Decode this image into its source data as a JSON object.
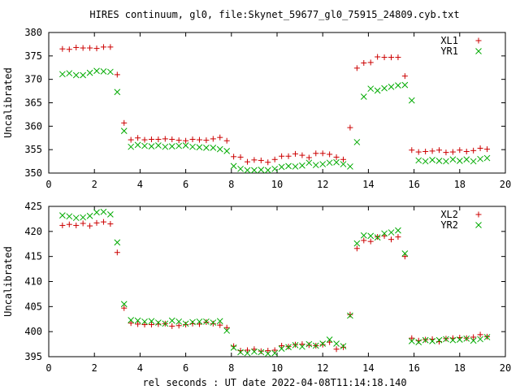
{
  "title": "HIRES continuum, gl0, file:Skynet_59677_gl0_75915_24809.cyb.txt",
  "xlabel": "rel seconds : UT date 2022-04-08T11:14:18.140",
  "colors": {
    "plus_series": "#cc0000",
    "x_series": "#00aa00"
  },
  "chart_data": [
    {
      "type": "scatter",
      "ylabel": "Uncalibrated",
      "xlim": [
        0,
        20
      ],
      "ylim": [
        350,
        380
      ],
      "xticks": [
        0,
        2,
        4,
        6,
        8,
        10,
        12,
        14,
        16,
        18,
        20
      ],
      "yticks": [
        350,
        355,
        360,
        365,
        370,
        375,
        380
      ],
      "legend_position": "top-right",
      "series": [
        {
          "name": "XL1",
          "marker": "plus",
          "x": [
            0.6,
            0.9,
            1.2,
            1.5,
            1.8,
            2.1,
            2.4,
            2.7,
            3.0,
            3.3,
            3.6,
            3.9,
            4.2,
            4.5,
            4.8,
            5.1,
            5.4,
            5.7,
            6.0,
            6.3,
            6.6,
            6.9,
            7.2,
            7.5,
            7.8,
            8.1,
            8.4,
            8.7,
            9.0,
            9.3,
            9.6,
            9.9,
            10.2,
            10.5,
            10.8,
            11.1,
            11.4,
            11.7,
            12.0,
            12.3,
            12.6,
            12.9,
            13.2,
            13.5,
            13.8,
            14.1,
            14.4,
            14.7,
            15.0,
            15.3,
            15.6,
            15.9,
            16.2,
            16.5,
            16.8,
            17.1,
            17.4,
            17.7,
            18.0,
            18.3,
            18.6,
            18.9,
            19.2
          ],
          "y": [
            376.5,
            376.4,
            376.8,
            376.7,
            376.7,
            376.6,
            376.9,
            376.9,
            371.0,
            360.7,
            357.1,
            357.5,
            357.1,
            357.2,
            357.2,
            357.3,
            357.2,
            357.0,
            356.9,
            357.2,
            357.1,
            357.0,
            357.3,
            357.6,
            356.9,
            353.5,
            353.4,
            352.4,
            352.8,
            352.7,
            352.3,
            352.9,
            353.6,
            353.6,
            354.1,
            353.8,
            353.3,
            354.2,
            354.2,
            354.0,
            353.4,
            352.9,
            359.7,
            372.4,
            373.5,
            373.6,
            374.8,
            374.7,
            374.7,
            374.7,
            370.7,
            354.9,
            354.5,
            354.6,
            354.7,
            354.9,
            354.4,
            354.5,
            354.9,
            354.6,
            354.8,
            355.3,
            355.1
          ]
        },
        {
          "name": "YR1",
          "marker": "x",
          "x": [
            0.6,
            0.9,
            1.2,
            1.5,
            1.8,
            2.1,
            2.4,
            2.7,
            3.0,
            3.3,
            3.6,
            3.9,
            4.2,
            4.5,
            4.8,
            5.1,
            5.4,
            5.7,
            6.0,
            6.3,
            6.6,
            6.9,
            7.2,
            7.5,
            7.8,
            8.1,
            8.4,
            8.7,
            9.0,
            9.3,
            9.6,
            9.9,
            10.2,
            10.5,
            10.8,
            11.1,
            11.4,
            11.7,
            12.0,
            12.3,
            12.6,
            12.9,
            13.2,
            13.5,
            13.8,
            14.1,
            14.4,
            14.7,
            15.0,
            15.3,
            15.6,
            15.9,
            16.2,
            16.5,
            16.8,
            17.1,
            17.4,
            17.7,
            18.0,
            18.3,
            18.6,
            18.9,
            19.2
          ],
          "y": [
            371.1,
            371.3,
            370.9,
            370.9,
            371.4,
            371.8,
            371.7,
            371.6,
            367.3,
            359.0,
            355.6,
            356.0,
            355.8,
            355.7,
            355.9,
            355.6,
            355.7,
            355.8,
            355.9,
            355.6,
            355.5,
            355.4,
            355.4,
            355.1,
            354.7,
            351.5,
            350.9,
            350.6,
            350.6,
            350.7,
            350.6,
            350.9,
            351.3,
            351.5,
            351.4,
            351.6,
            352.2,
            351.7,
            351.9,
            352.2,
            352.3,
            351.9,
            351.4,
            356.6,
            366.3,
            368.0,
            367.6,
            368.1,
            368.4,
            368.7,
            368.8,
            365.5,
            352.7,
            352.5,
            352.8,
            352.6,
            352.5,
            352.9,
            352.6,
            352.9,
            352.5,
            353.0,
            353.2
          ]
        }
      ]
    },
    {
      "type": "scatter",
      "ylabel": "Uncalibrated",
      "xlim": [
        0,
        20
      ],
      "ylim": [
        395,
        425
      ],
      "xticks": [
        0,
        2,
        4,
        6,
        8,
        10,
        12,
        14,
        16,
        18,
        20
      ],
      "yticks": [
        395,
        400,
        405,
        410,
        415,
        420,
        425
      ],
      "legend_position": "top-right",
      "series": [
        {
          "name": "XL2",
          "marker": "plus",
          "x": [
            0.6,
            0.9,
            1.2,
            1.5,
            1.8,
            2.1,
            2.4,
            2.7,
            3.0,
            3.3,
            3.6,
            3.9,
            4.2,
            4.5,
            4.8,
            5.1,
            5.4,
            5.7,
            6.0,
            6.3,
            6.6,
            6.9,
            7.2,
            7.5,
            7.8,
            8.1,
            8.4,
            8.7,
            9.0,
            9.3,
            9.6,
            9.9,
            10.2,
            10.5,
            10.8,
            11.1,
            11.4,
            11.7,
            12.0,
            12.3,
            12.6,
            12.9,
            13.2,
            13.5,
            13.8,
            14.1,
            14.4,
            14.7,
            15.0,
            15.3,
            15.6,
            15.9,
            16.2,
            16.5,
            16.8,
            17.1,
            17.4,
            17.7,
            18.0,
            18.3,
            18.6,
            18.9,
            19.2
          ],
          "y": [
            421.2,
            421.4,
            421.2,
            421.6,
            421.1,
            421.7,
            421.9,
            421.5,
            415.8,
            404.7,
            401.7,
            401.5,
            401.4,
            401.4,
            401.5,
            401.6,
            401.1,
            401.2,
            401.4,
            401.6,
            401.5,
            401.9,
            401.6,
            401.3,
            400.8,
            397.1,
            396.2,
            396.3,
            396.5,
            396.1,
            396.2,
            396.3,
            397.2,
            397.0,
            397.4,
            397.5,
            397.3,
            397.2,
            397.4,
            397.9,
            396.5,
            396.9,
            403.4,
            416.6,
            418.2,
            418.0,
            418.9,
            419.1,
            418.4,
            418.9,
            415.0,
            398.7,
            398.2,
            398.4,
            398.5,
            398.0,
            398.6,
            398.7,
            398.8,
            398.7,
            398.9,
            399.4,
            399.0
          ]
        },
        {
          "name": "YR2",
          "marker": "x",
          "x": [
            0.6,
            0.9,
            1.2,
            1.5,
            1.8,
            2.1,
            2.4,
            2.7,
            3.0,
            3.3,
            3.6,
            3.9,
            4.2,
            4.5,
            4.8,
            5.1,
            5.4,
            5.7,
            6.0,
            6.3,
            6.6,
            6.9,
            7.2,
            7.5,
            7.8,
            8.1,
            8.4,
            8.7,
            9.0,
            9.3,
            9.6,
            9.9,
            10.2,
            10.5,
            10.8,
            11.1,
            11.4,
            11.7,
            12.0,
            12.3,
            12.6,
            12.9,
            13.2,
            13.5,
            13.8,
            14.1,
            14.4,
            14.7,
            15.0,
            15.3,
            15.6,
            15.9,
            16.2,
            16.5,
            16.8,
            17.1,
            17.4,
            17.7,
            18.0,
            18.3,
            18.6,
            18.9,
            19.2
          ],
          "y": [
            423.2,
            423.0,
            422.7,
            422.8,
            423.1,
            423.8,
            423.9,
            423.4,
            417.8,
            405.5,
            402.3,
            402.2,
            402.0,
            402.1,
            401.8,
            401.6,
            402.2,
            402.0,
            401.6,
            401.9,
            402.0,
            402.0,
            401.8,
            402.1,
            400.2,
            396.8,
            395.9,
            395.7,
            396.0,
            395.9,
            395.6,
            395.7,
            396.6,
            396.9,
            397.3,
            397.0,
            397.5,
            397.2,
            397.6,
            398.4,
            397.6,
            397.1,
            403.2,
            417.6,
            419.2,
            419.1,
            418.8,
            419.6,
            419.8,
            420.2,
            415.6,
            398.1,
            397.9,
            398.3,
            398.1,
            398.3,
            398.5,
            398.3,
            398.4,
            398.6,
            398.2,
            398.5,
            398.9
          ]
        }
      ]
    }
  ]
}
